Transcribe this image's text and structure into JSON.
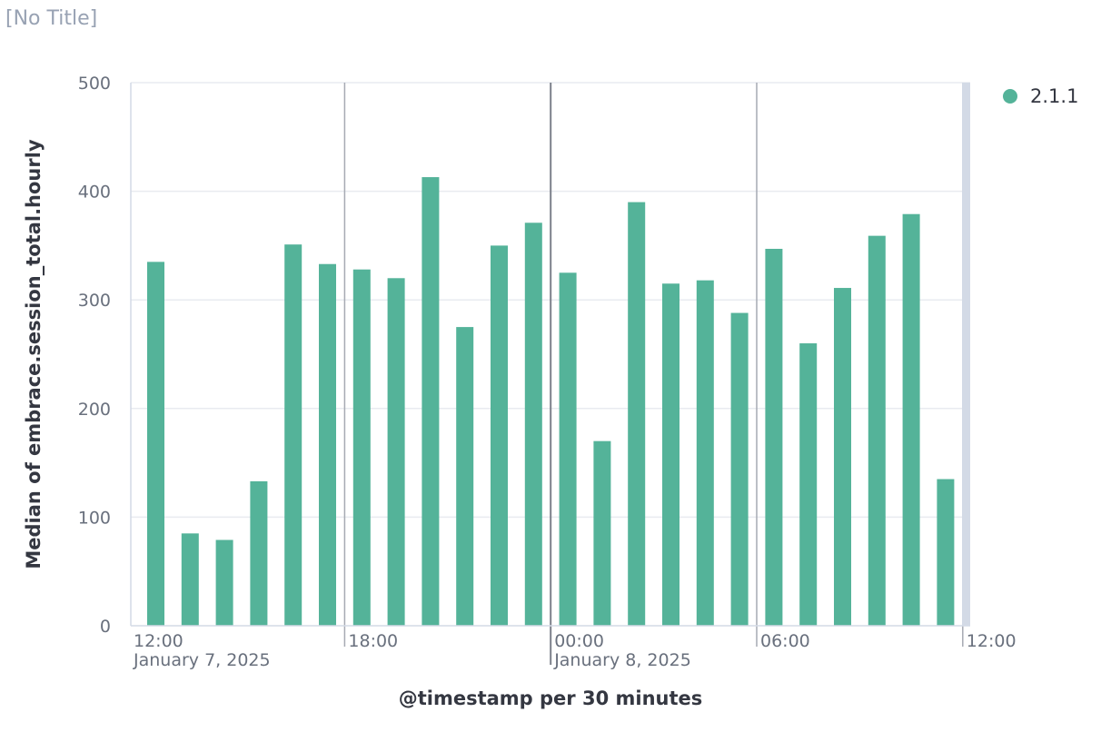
{
  "panel": {
    "title": "[No Title]"
  },
  "colors": {
    "bar": "#54b399",
    "grid": "#e9ebf0",
    "axis": "#d3dae6",
    "tick_text": "#69707d",
    "axis_title": "#343741",
    "separator": "#a6aab3",
    "separator_strong": "#7c808a",
    "scroll_edge": "#d3dae6"
  },
  "chart_data": {
    "type": "bar",
    "title": "",
    "xlabel": "@timestamp per 30 minutes",
    "ylabel": "Median of embrace.session_total.hourly",
    "ylim": [
      0,
      500
    ],
    "yticks": [
      0,
      100,
      200,
      300,
      400,
      500
    ],
    "grid": true,
    "legend_position": "top-right",
    "x_labels": [
      {
        "time": "12:00",
        "date": "January 7, 2025",
        "major": false
      },
      {
        "time": "18:00",
        "date": "",
        "major": false
      },
      {
        "time": "00:00",
        "date": "January 8, 2025",
        "major": true
      },
      {
        "time": "06:00",
        "date": "",
        "major": false
      },
      {
        "time": "12:00",
        "date": "",
        "major": false
      }
    ],
    "series": [
      {
        "name": "2.1.1",
        "color": "#54b399",
        "values": [
          335,
          85,
          79,
          133,
          351,
          333,
          328,
          320,
          413,
          275,
          350,
          371,
          325,
          170,
          390,
          315,
          318,
          288,
          347,
          260,
          311,
          359,
          379,
          135
        ]
      }
    ]
  }
}
